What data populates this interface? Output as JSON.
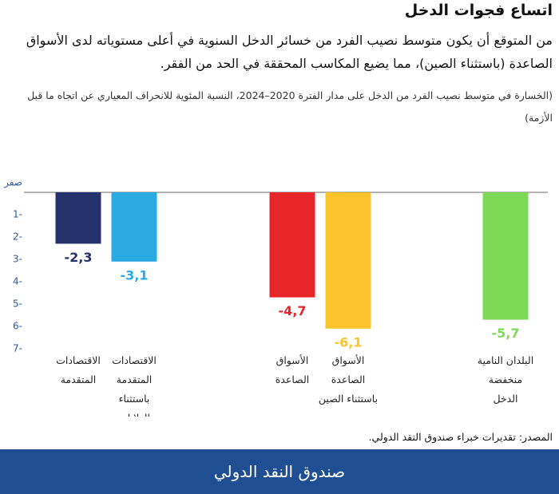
{
  "chart_data": {
    "type": "bar",
    "title": "اتساع فجوات الدخل",
    "subtitle": "من المتوقع أن يكون متوسط نصيب الفرد من خسائر الدخل السنوية في أعلى مستوياته لدى الأسواق الصاعدة (باستثناء الصين)، مما يضيع المكاسب المحققة في الحد من الفقر.",
    "note": "(الخسارة في متوسط نصيب الفرد من الدخل على مدار الفترة 2020–2024، النسبة المئوية للانحراف المعياري عن اتجاه ما قبل الأزمة)",
    "categories": [
      "الاقتصادات المتقدمة",
      "الاقتصادات المتقدمة باستثناء الولايات المتحدة",
      "الأسواق الصاعدة",
      "الأسواق الصاعدة باستثناء الصين",
      "البلدان النامية منخفضة الدخل"
    ],
    "values": [
      -2.3,
      -3.1,
      -4.7,
      -6.1,
      -5.7
    ],
    "value_labels": [
      "2,3-",
      "3,1-",
      "4,7-",
      "6,1-",
      "5,7-"
    ],
    "colors": [
      "#25316b",
      "#29abe2",
      "#e8262a",
      "#fcc32c",
      "#7ed957"
    ],
    "ylim": [
      -7,
      0
    ],
    "yticks": [
      {
        "value": 0,
        "label": "صفر"
      },
      {
        "value": -1,
        "label": "1-"
      },
      {
        "value": -2,
        "label": "2-"
      },
      {
        "value": -3,
        "label": "3-"
      },
      {
        "value": -4,
        "label": "4-"
      },
      {
        "value": -5,
        "label": "5-"
      },
      {
        "value": -6,
        "label": "6-"
      },
      {
        "value": -7,
        "label": "7-"
      }
    ],
    "source": "المصدر: تقديرات خبراء صندوق النقد الدولي."
  },
  "footer": {
    "text": "صندوق النقد الدولي"
  }
}
